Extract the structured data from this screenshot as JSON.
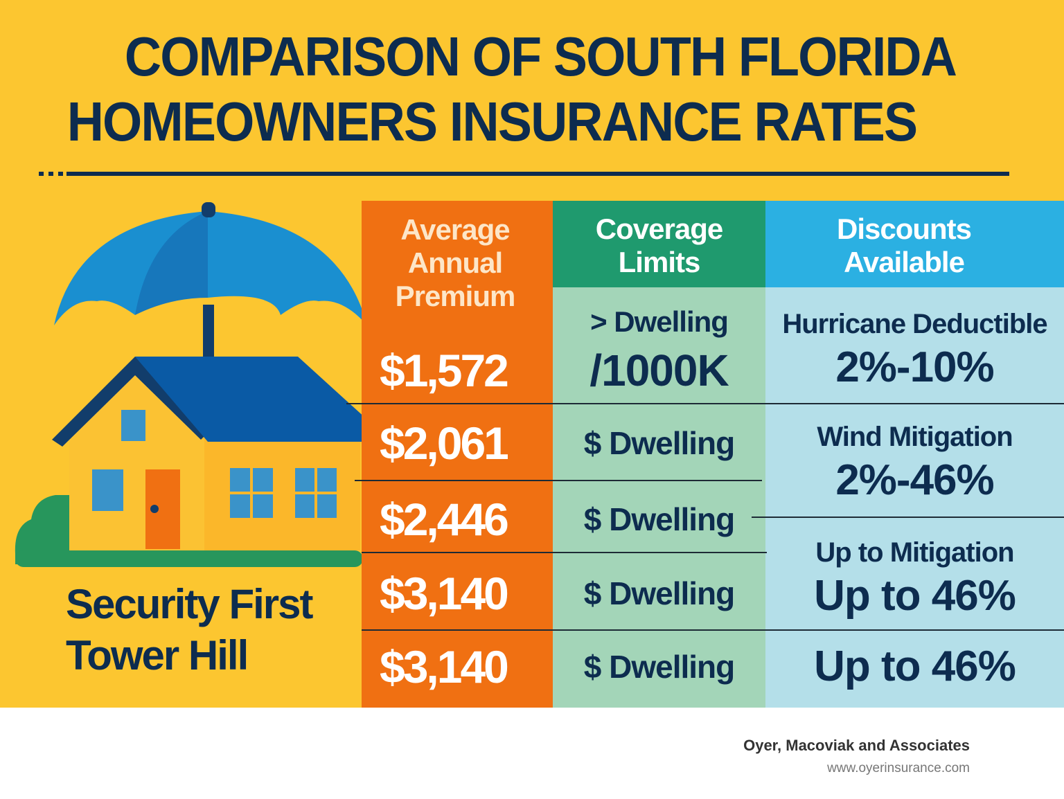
{
  "title": {
    "line1": "COMPARISON OF SOUTH FLORIDA",
    "line2": "HOMEOWNERS INSURANCE RATES"
  },
  "colors": {
    "background": "#fcc630",
    "navy": "#0d2c4f",
    "premium": "#f07012",
    "coverage_header": "#1f9a6e",
    "coverage_cells": "#a3d5b8",
    "discount_header": "#2bb0e2",
    "discount_cells": "#b4dfe9"
  },
  "illustration": "house-with-umbrella",
  "companies": [
    "Security First",
    "Tower Hill"
  ],
  "table": {
    "headers": {
      "premium": [
        "Average",
        "Annual",
        "Premium"
      ],
      "coverage": [
        "Coverage",
        "Limits"
      ],
      "discounts": [
        "Discounts",
        "Available"
      ]
    },
    "premiums": [
      "$1,572",
      "$2,061",
      "$2,446",
      "$3,140",
      "$3,140"
    ],
    "coverage": [
      {
        "line1": "> Dwelling",
        "line2": "/1000K"
      },
      {
        "line1": "$ Dwelling"
      },
      {
        "line1": "$ Dwelling"
      },
      {
        "line1": "$ Dwelling"
      },
      {
        "line1": "$ Dwelling"
      }
    ],
    "discounts": [
      {
        "name": "Hurricane Deductible",
        "value": "2%-10%"
      },
      {
        "name": "Wind Mitigation",
        "value": "2%-46%"
      },
      {
        "name": "Up to Mitigation",
        "value": "Up to 46%"
      },
      {
        "value": "Up to 46%"
      }
    ]
  },
  "footer": {
    "company": "Oyer, Macoviak and Associates",
    "website": "www.oyerinsurance.com"
  }
}
